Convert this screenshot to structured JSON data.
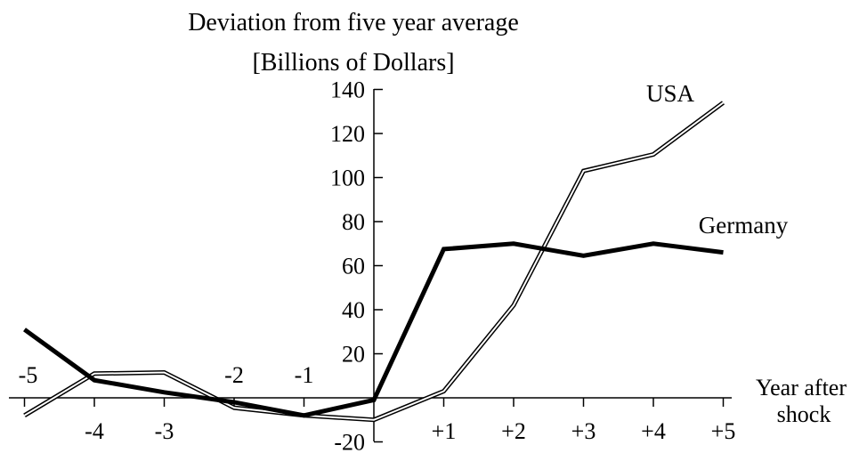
{
  "chart_data": {
    "type": "line",
    "title_lines": [
      "Deviation from five year average",
      "[Billions of Dollars]"
    ],
    "xlabel_lines": [
      "Year after",
      "shock"
    ],
    "ylabel": "",
    "x": [
      -5,
      -4,
      -3,
      -2,
      -1,
      0,
      1,
      2,
      3,
      4,
      5
    ],
    "x_tick_labels": [
      "-5",
      "-4",
      "-3",
      "-2",
      "-1",
      "+1",
      "+2",
      "+3",
      "+4",
      "+5"
    ],
    "y_ticks": [
      -20,
      20,
      40,
      60,
      80,
      100,
      120,
      140
    ],
    "ylim": [
      -20,
      140
    ],
    "xlim": [
      -5,
      5
    ],
    "grid": false,
    "series": [
      {
        "name": "USA",
        "style": "double-outline",
        "color": "#000000",
        "values": [
          -8,
          11,
          11.5,
          -4.5,
          -8,
          -10,
          3,
          42,
          103,
          110.5,
          134
        ]
      },
      {
        "name": "Germany",
        "style": "thick-solid",
        "color": "#000000",
        "values": [
          31,
          8,
          2.5,
          -2,
          -8,
          -1,
          67.5,
          70,
          64.5,
          70,
          66
        ]
      }
    ]
  }
}
